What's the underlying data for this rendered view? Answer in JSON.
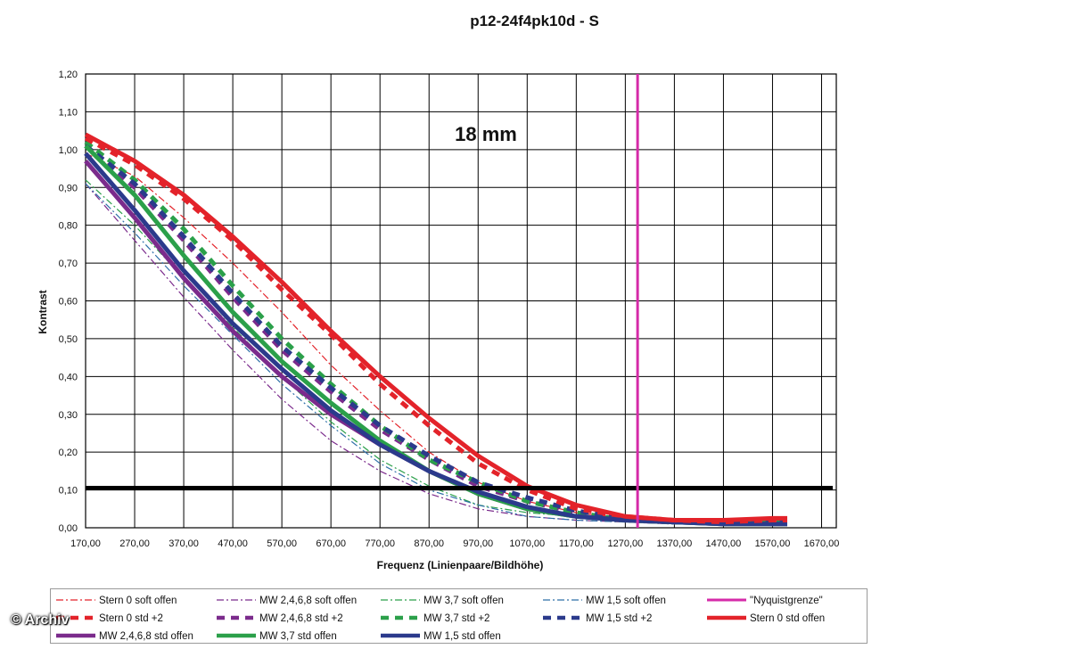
{
  "copyright": "© Archiv",
  "chart_data": {
    "type": "line",
    "title": "p12-24f4pk10d - S",
    "xlabel": "Frequenz (Linienpaare/Bildhöhe)",
    "ylabel": "Kontrast",
    "annotation": "18 mm",
    "xlim": [
      170,
      1700
    ],
    "ylim": [
      0,
      1.2
    ],
    "x_ticks": [
      "170,00",
      "270,00",
      "370,00",
      "470,00",
      "570,00",
      "670,00",
      "770,00",
      "870,00",
      "970,00",
      "1070,00",
      "1170,00",
      "1270,00",
      "1370,00",
      "1470,00",
      "1570,00",
      "1670,00"
    ],
    "y_ticks": [
      "0,00",
      "0,10",
      "0,20",
      "0,30",
      "0,40",
      "0,50",
      "0,60",
      "0,70",
      "0,80",
      "0,90",
      "1,00",
      "1,10",
      "1,20"
    ],
    "grid": true,
    "legend_position": "bottom",
    "reference_lines": [
      {
        "orientation": "horizontal",
        "value": 0.105,
        "color": "#000000"
      },
      {
        "orientation": "vertical",
        "value": 1295,
        "color": "#d52aa8"
      }
    ],
    "series": [
      {
        "name": "Stern 0 soft offen",
        "color": "#e3232a",
        "style": "dashdot",
        "width": 1.2,
        "x": [
          170,
          270,
          370,
          470,
          570,
          670,
          770,
          870,
          970,
          1070,
          1170,
          1270,
          1370,
          1470,
          1570,
          1600
        ],
        "y": [
          0.99,
          0.93,
          0.82,
          0.7,
          0.57,
          0.43,
          0.31,
          0.2,
          0.12,
          0.07,
          0.04,
          0.025,
          0.02,
          0.015,
          0.02,
          0.02
        ]
      },
      {
        "name": "MW 2,4,6,8 soft offen",
        "color": "#7b2b8c",
        "style": "dashdot",
        "width": 1.2,
        "x": [
          170,
          270,
          370,
          470,
          570,
          670,
          770,
          870,
          970,
          1070,
          1170,
          1270,
          1370,
          1470,
          1570,
          1600
        ],
        "y": [
          0.91,
          0.76,
          0.61,
          0.47,
          0.34,
          0.23,
          0.15,
          0.09,
          0.05,
          0.03,
          0.02,
          0.015,
          0.01,
          0.01,
          0.01,
          0.01
        ]
      },
      {
        "name": "MW 3,7 soft offen",
        "color": "#2ba04a",
        "style": "dashdot",
        "width": 1.2,
        "x": [
          170,
          270,
          370,
          470,
          570,
          670,
          770,
          870,
          970,
          1070,
          1170,
          1270,
          1370,
          1470,
          1570,
          1600
        ],
        "y": [
          0.92,
          0.8,
          0.66,
          0.53,
          0.4,
          0.28,
          0.18,
          0.11,
          0.06,
          0.04,
          0.03,
          0.02,
          0.01,
          0.01,
          0.01,
          0.01
        ]
      },
      {
        "name": "MW 1,5 soft offen",
        "color": "#2e6fa8",
        "style": "dashdot",
        "width": 1.2,
        "x": [
          170,
          270,
          370,
          470,
          570,
          670,
          770,
          870,
          970,
          1070,
          1170,
          1270,
          1370,
          1470,
          1570,
          1600
        ],
        "y": [
          0.91,
          0.78,
          0.64,
          0.51,
          0.38,
          0.27,
          0.17,
          0.1,
          0.06,
          0.03,
          0.02,
          0.015,
          0.01,
          0.01,
          0.01,
          0.01
        ]
      },
      {
        "name": "\"Nyquistgrenze\"",
        "color": "#d52aa8",
        "style": "solid",
        "width": 3,
        "x": [
          1295,
          1295
        ],
        "y": [
          0,
          1.2
        ]
      },
      {
        "name": "Stern 0 std +2",
        "color": "#e3232a",
        "style": "dashed",
        "width": 5,
        "x": [
          170,
          270,
          370,
          470,
          570,
          670,
          770,
          870,
          970,
          1070,
          1170,
          1270,
          1370,
          1470,
          1570,
          1600
        ],
        "y": [
          1.03,
          0.96,
          0.87,
          0.76,
          0.63,
          0.51,
          0.38,
          0.27,
          0.17,
          0.1,
          0.05,
          0.03,
          0.02,
          0.015,
          0.02,
          0.02
        ]
      },
      {
        "name": "MW 2,4,6,8 std +2",
        "color": "#7b2b8c",
        "style": "dashed",
        "width": 5,
        "x": [
          170,
          270,
          370,
          470,
          570,
          670,
          770,
          870,
          970,
          1070,
          1170,
          1270,
          1370,
          1470,
          1570,
          1600
        ],
        "y": [
          1.01,
          0.9,
          0.76,
          0.61,
          0.47,
          0.36,
          0.26,
          0.18,
          0.11,
          0.07,
          0.04,
          0.02,
          0.015,
          0.015,
          0.015,
          0.015
        ]
      },
      {
        "name": "MW 3,7 std +2",
        "color": "#2ba04a",
        "style": "dashed",
        "width": 5,
        "x": [
          170,
          270,
          370,
          470,
          570,
          670,
          770,
          870,
          970,
          1070,
          1170,
          1270,
          1370,
          1470,
          1570,
          1600
        ],
        "y": [
          1.02,
          0.92,
          0.79,
          0.64,
          0.5,
          0.38,
          0.27,
          0.18,
          0.12,
          0.07,
          0.04,
          0.02,
          0.015,
          0.015,
          0.015,
          0.015
        ]
      },
      {
        "name": "MW 1,5 std +2",
        "color": "#2b3a8c",
        "style": "dashed",
        "width": 5,
        "x": [
          170,
          270,
          370,
          470,
          570,
          670,
          770,
          870,
          970,
          1070,
          1170,
          1270,
          1370,
          1470,
          1570,
          1600
        ],
        "y": [
          1.01,
          0.91,
          0.77,
          0.62,
          0.48,
          0.37,
          0.27,
          0.19,
          0.12,
          0.08,
          0.045,
          0.025,
          0.015,
          0.015,
          0.015,
          0.015
        ]
      },
      {
        "name": "Stern 0 std offen",
        "color": "#e3232a",
        "style": "solid",
        "width": 5,
        "x": [
          170,
          270,
          370,
          470,
          570,
          670,
          770,
          870,
          970,
          1070,
          1170,
          1270,
          1370,
          1470,
          1570,
          1600
        ],
        "y": [
          1.04,
          0.97,
          0.88,
          0.77,
          0.65,
          0.52,
          0.4,
          0.29,
          0.19,
          0.11,
          0.06,
          0.03,
          0.02,
          0.02,
          0.025,
          0.025
        ]
      },
      {
        "name": "MW 2,4,6,8 std offen",
        "color": "#7b2b8c",
        "style": "solid",
        "width": 5,
        "x": [
          170,
          270,
          370,
          470,
          570,
          670,
          770,
          870,
          970,
          1070,
          1170,
          1270,
          1370,
          1470,
          1570,
          1600
        ],
        "y": [
          0.97,
          0.82,
          0.66,
          0.52,
          0.4,
          0.3,
          0.22,
          0.15,
          0.09,
          0.05,
          0.03,
          0.02,
          0.015,
          0.01,
          0.01,
          0.01
        ]
      },
      {
        "name": "MW 3,7 std offen",
        "color": "#2ba04a",
        "style": "solid",
        "width": 5,
        "x": [
          170,
          270,
          370,
          470,
          570,
          670,
          770,
          870,
          970,
          1070,
          1170,
          1270,
          1370,
          1470,
          1570,
          1600
        ],
        "y": [
          1.01,
          0.88,
          0.72,
          0.57,
          0.44,
          0.33,
          0.23,
          0.15,
          0.09,
          0.05,
          0.03,
          0.02,
          0.015,
          0.01,
          0.01,
          0.01
        ]
      },
      {
        "name": "MW 1,5 std offen",
        "color": "#2b3a8c",
        "style": "solid",
        "width": 5,
        "x": [
          170,
          270,
          370,
          470,
          570,
          670,
          770,
          870,
          970,
          1070,
          1170,
          1270,
          1370,
          1470,
          1570,
          1600
        ],
        "y": [
          0.99,
          0.84,
          0.68,
          0.54,
          0.42,
          0.31,
          0.22,
          0.15,
          0.095,
          0.055,
          0.03,
          0.02,
          0.015,
          0.01,
          0.01,
          0.01
        ]
      }
    ]
  }
}
